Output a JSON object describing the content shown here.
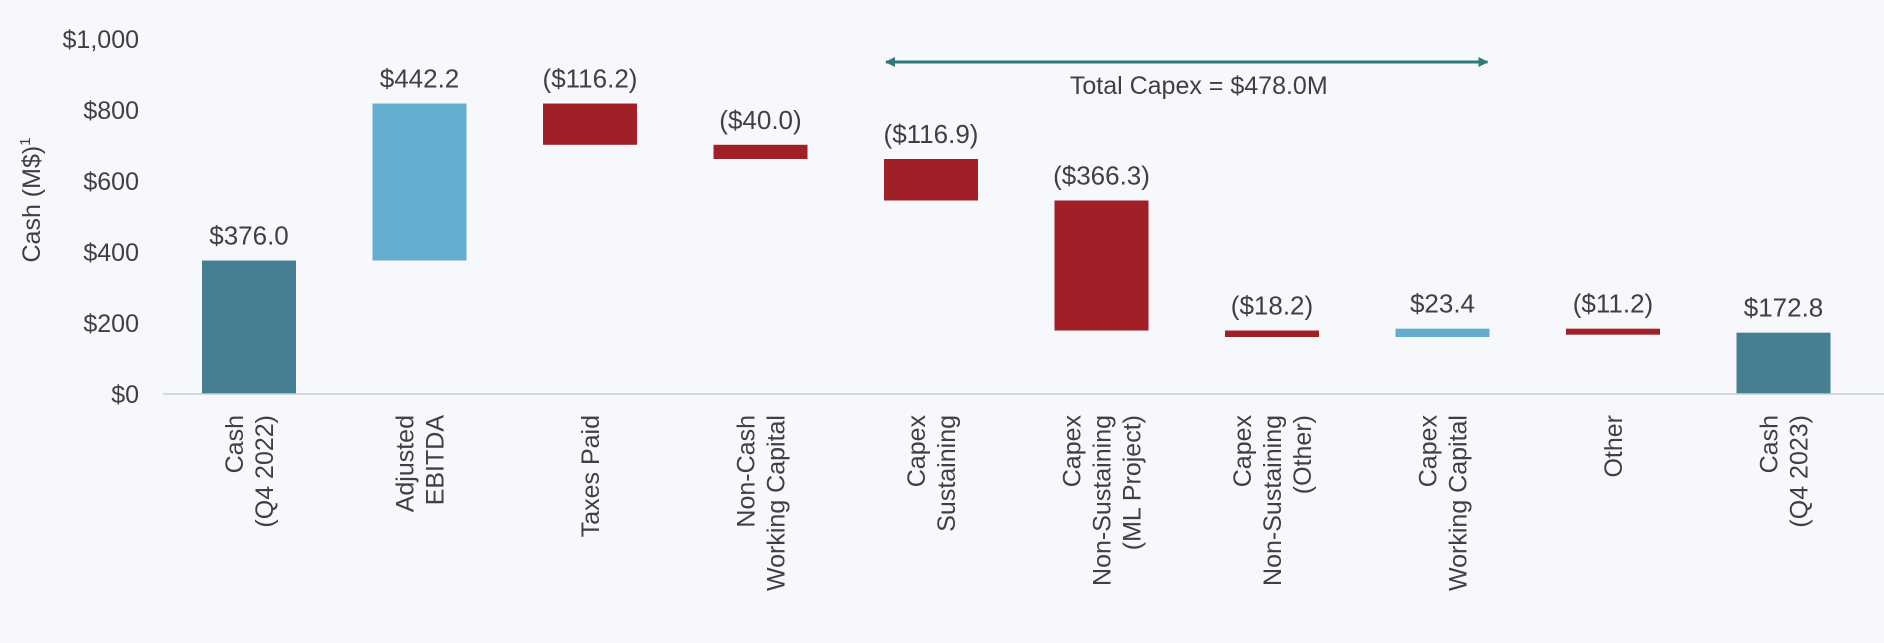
{
  "chart_data": {
    "type": "waterfall",
    "ylabel": "Cash (M$)",
    "ylabel_superscript": "1",
    "ylim": [
      0,
      1000
    ],
    "yticks": [
      {
        "value": 0,
        "label": "$0"
      },
      {
        "value": 200,
        "label": "$200"
      },
      {
        "value": 400,
        "label": "$400"
      },
      {
        "value": 600,
        "label": "$600"
      },
      {
        "value": 800,
        "label": "$800"
      },
      {
        "value": 1000,
        "label": "$1,000"
      }
    ],
    "grid": false,
    "colors": {
      "total": "#467f93",
      "increase": "#63aece",
      "decrease": "#a11f27",
      "annotation": "#2e7b76",
      "baseline": "#c8ccd6"
    },
    "bars": [
      {
        "category": [
          "Cash",
          "(Q4 2022)"
        ],
        "kind": "total",
        "value": 376.0,
        "start": 0,
        "end": 376.0,
        "label": "$376.0"
      },
      {
        "category": [
          "Adjusted",
          "EBITDA"
        ],
        "kind": "increase",
        "value": 442.2,
        "start": 376.0,
        "end": 818.2,
        "label": "$442.2"
      },
      {
        "category": [
          "Taxes Paid"
        ],
        "kind": "decrease",
        "value": -116.2,
        "start": 818.2,
        "end": 702.0,
        "label": "($116.2)"
      },
      {
        "category": [
          "Non-Cash",
          "Working Capital"
        ],
        "kind": "decrease",
        "value": -40.0,
        "start": 702.0,
        "end": 662.0,
        "label": "($40.0)"
      },
      {
        "category": [
          "Capex",
          "Sustaining"
        ],
        "kind": "decrease",
        "value": -116.9,
        "start": 662.0,
        "end": 545.1,
        "label": "($116.9)"
      },
      {
        "category": [
          "Capex",
          "Non-Sustaining",
          "(ML Project)"
        ],
        "kind": "decrease",
        "value": -366.3,
        "start": 545.1,
        "end": 178.8,
        "label": "($366.3)"
      },
      {
        "category": [
          "Capex",
          "Non-Sustaining",
          "(Other)"
        ],
        "kind": "decrease",
        "value": -18.2,
        "start": 178.8,
        "end": 160.6,
        "label": "($18.2)"
      },
      {
        "category": [
          "Capex",
          "Working Capital"
        ],
        "kind": "increase",
        "value": 23.4,
        "start": 160.6,
        "end": 184.0,
        "label": "$23.4"
      },
      {
        "category": [
          "Other"
        ],
        "kind": "decrease",
        "value": -11.2,
        "start": 184.0,
        "end": 172.8,
        "label": "($11.2)"
      },
      {
        "category": [
          "Cash",
          "(Q4 2023)"
        ],
        "kind": "total",
        "value": 172.8,
        "start": 0,
        "end": 172.8,
        "label": "$172.8"
      }
    ],
    "annotations": [
      {
        "text": "Total Capex = $478.0M",
        "from_bar": 4,
        "to_bar": 7,
        "style": "double-arrow"
      }
    ]
  }
}
